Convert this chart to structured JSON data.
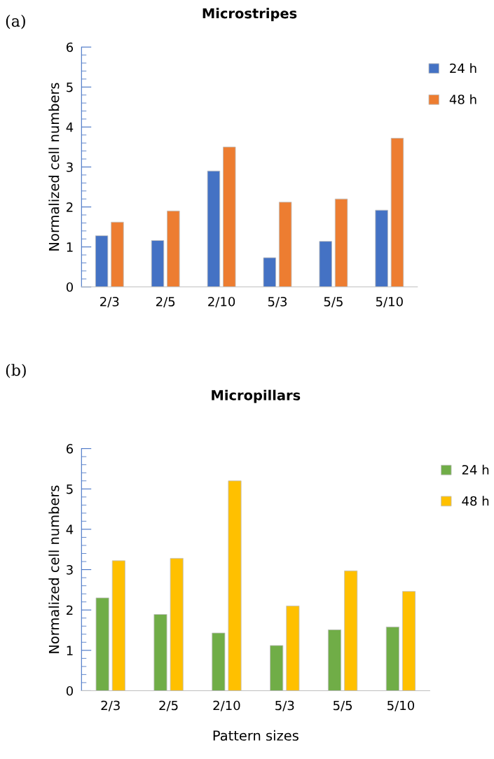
{
  "chart_data": [
    {
      "type": "bar",
      "title": "Microstripes",
      "ylabel": "Normalized cell numbers",
      "annotations": [
        "(a)"
      ],
      "categories": [
        "2/3",
        "2/5",
        "2/10",
        "5/3",
        "5/5",
        "5/10"
      ],
      "series": [
        {
          "name": "24 h",
          "color": "#4472c4",
          "values": [
            1.28,
            1.16,
            2.9,
            0.73,
            1.14,
            1.92
          ]
        },
        {
          "name": "48 h",
          "color": "#ed7d31",
          "values": [
            1.62,
            1.9,
            3.5,
            2.12,
            2.2,
            3.72
          ]
        }
      ],
      "ylim": [
        0,
        6
      ],
      "yticks": [
        0,
        1,
        2,
        3,
        4,
        5,
        6
      ],
      "grid": false,
      "legend": "top right"
    },
    {
      "type": "bar",
      "title": "Micropillars",
      "xlabel": "Pattern sizes",
      "ylabel": "Normalized cell numbers",
      "annotations": [
        "(b)"
      ],
      "categories": [
        "2/3",
        "2/5",
        "2/10",
        "5/3",
        "5/5",
        "5/10"
      ],
      "series": [
        {
          "name": "24 h",
          "color": "#70ad47",
          "values": [
            2.3,
            1.89,
            1.43,
            1.12,
            1.51,
            1.58
          ]
        },
        {
          "name": "48 h",
          "color": "#ffc000",
          "values": [
            3.22,
            3.28,
            5.2,
            2.1,
            2.97,
            2.46
          ]
        }
      ],
      "ylim": [
        0,
        6
      ],
      "yticks": [
        0,
        1,
        2,
        3,
        4,
        5,
        6
      ],
      "grid": false,
      "legend": "top right"
    }
  ]
}
